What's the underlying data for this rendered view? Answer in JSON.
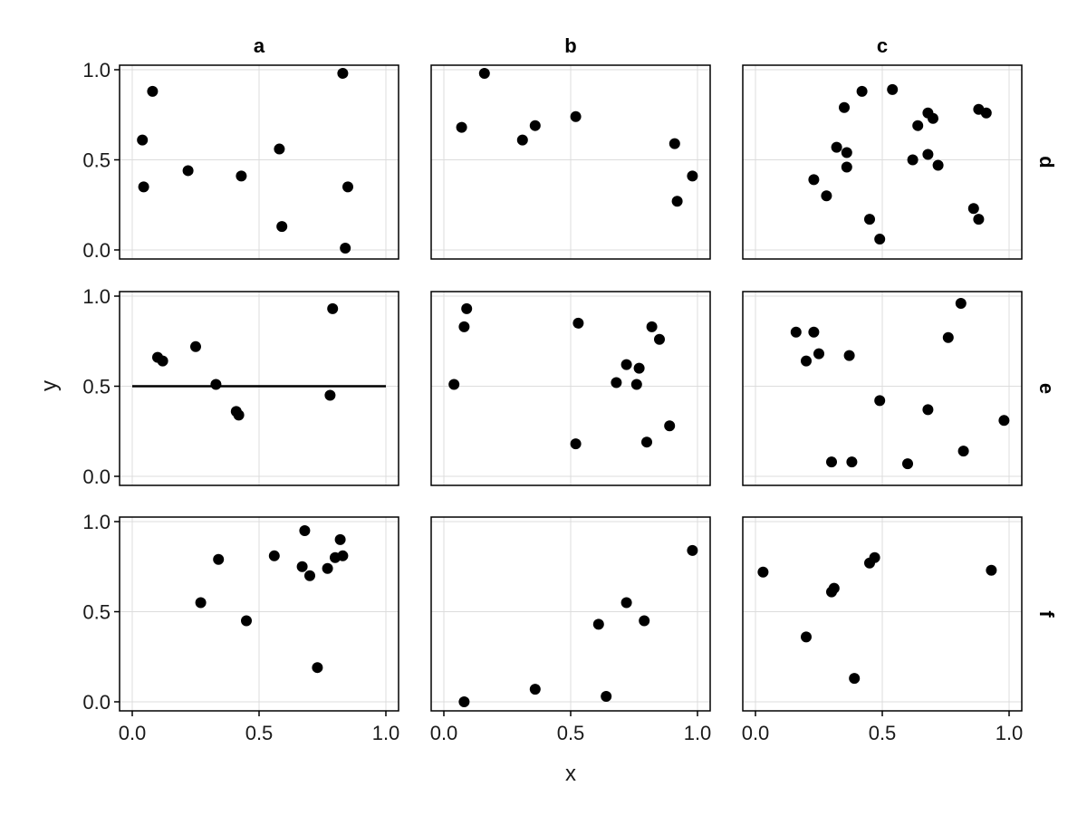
{
  "chart_data": {
    "type": "scatter",
    "xlabel": "x",
    "ylabel": "y",
    "xlim": [
      0,
      1
    ],
    "ylim": [
      0,
      1
    ],
    "x_ticks": [
      "0.0",
      "0.5",
      "1.0"
    ],
    "y_ticks": [
      "0.0",
      "0.5",
      "1.0"
    ],
    "grid": true,
    "col_labels": [
      "a",
      "b",
      "c"
    ],
    "row_labels": [
      "d",
      "e",
      "f"
    ],
    "marker_color": "#000000",
    "panels": [
      {
        "row": "d",
        "col": "a",
        "points": [
          [
            0.04,
            0.61
          ],
          [
            0.045,
            0.35
          ],
          [
            0.08,
            0.88
          ],
          [
            0.22,
            0.44
          ],
          [
            0.43,
            0.41
          ],
          [
            0.58,
            0.56
          ],
          [
            0.59,
            0.13
          ],
          [
            0.83,
            0.98
          ],
          [
            0.84,
            0.01
          ],
          [
            0.85,
            0.35
          ]
        ]
      },
      {
        "row": "d",
        "col": "b",
        "points": [
          [
            0.07,
            0.68
          ],
          [
            0.16,
            0.98
          ],
          [
            0.31,
            0.61
          ],
          [
            0.36,
            0.69
          ],
          [
            0.52,
            0.74
          ],
          [
            0.91,
            0.59
          ],
          [
            0.92,
            0.27
          ],
          [
            0.98,
            0.41
          ]
        ]
      },
      {
        "row": "d",
        "col": "c",
        "points": [
          [
            0.23,
            0.39
          ],
          [
            0.28,
            0.3
          ],
          [
            0.32,
            0.57
          ],
          [
            0.35,
            0.79
          ],
          [
            0.36,
            0.54
          ],
          [
            0.36,
            0.46
          ],
          [
            0.42,
            0.88
          ],
          [
            0.45,
            0.17
          ],
          [
            0.49,
            0.06
          ],
          [
            0.54,
            0.89
          ],
          [
            0.62,
            0.5
          ],
          [
            0.64,
            0.69
          ],
          [
            0.68,
            0.76
          ],
          [
            0.68,
            0.53
          ],
          [
            0.7,
            0.73
          ],
          [
            0.72,
            0.47
          ],
          [
            0.86,
            0.23
          ],
          [
            0.88,
            0.78
          ],
          [
            0.88,
            0.17
          ],
          [
            0.91,
            0.76
          ]
        ]
      },
      {
        "row": "e",
        "col": "a",
        "points": [
          [
            0.1,
            0.66
          ],
          [
            0.12,
            0.64
          ],
          [
            0.25,
            0.72
          ],
          [
            0.33,
            0.51
          ],
          [
            0.41,
            0.36
          ],
          [
            0.42,
            0.34
          ],
          [
            0.78,
            0.45
          ],
          [
            0.79,
            0.93
          ]
        ],
        "hline": 0.5
      },
      {
        "row": "e",
        "col": "b",
        "points": [
          [
            0.04,
            0.51
          ],
          [
            0.08,
            0.83
          ],
          [
            0.09,
            0.93
          ],
          [
            0.52,
            0.18
          ],
          [
            0.53,
            0.85
          ],
          [
            0.68,
            0.52
          ],
          [
            0.72,
            0.62
          ],
          [
            0.76,
            0.51
          ],
          [
            0.77,
            0.6
          ],
          [
            0.8,
            0.19
          ],
          [
            0.82,
            0.83
          ],
          [
            0.85,
            0.76
          ],
          [
            0.89,
            0.28
          ]
        ]
      },
      {
        "row": "e",
        "col": "c",
        "points": [
          [
            0.16,
            0.8
          ],
          [
            0.2,
            0.64
          ],
          [
            0.23,
            0.8
          ],
          [
            0.25,
            0.68
          ],
          [
            0.3,
            0.08
          ],
          [
            0.37,
            0.67
          ],
          [
            0.38,
            0.08
          ],
          [
            0.49,
            0.42
          ],
          [
            0.6,
            0.07
          ],
          [
            0.68,
            0.37
          ],
          [
            0.76,
            0.77
          ],
          [
            0.81,
            0.96
          ],
          [
            0.82,
            0.14
          ],
          [
            0.98,
            0.31
          ]
        ]
      },
      {
        "row": "f",
        "col": "a",
        "points": [
          [
            0.27,
            0.55
          ],
          [
            0.34,
            0.79
          ],
          [
            0.45,
            0.45
          ],
          [
            0.56,
            0.81
          ],
          [
            0.67,
            0.75
          ],
          [
            0.68,
            0.95
          ],
          [
            0.7,
            0.7
          ],
          [
            0.73,
            0.19
          ],
          [
            0.77,
            0.74
          ],
          [
            0.8,
            0.8
          ],
          [
            0.82,
            0.9
          ],
          [
            0.83,
            0.81
          ]
        ]
      },
      {
        "row": "f",
        "col": "b",
        "points": [
          [
            0.08,
            0.0
          ],
          [
            0.36,
            0.07
          ],
          [
            0.61,
            0.43
          ],
          [
            0.64,
            0.03
          ],
          [
            0.72,
            0.55
          ],
          [
            0.79,
            0.45
          ],
          [
            0.98,
            0.84
          ]
        ]
      },
      {
        "row": "f",
        "col": "c",
        "points": [
          [
            0.03,
            0.72
          ],
          [
            0.2,
            0.36
          ],
          [
            0.3,
            0.61
          ],
          [
            0.31,
            0.63
          ],
          [
            0.39,
            0.13
          ],
          [
            0.45,
            0.77
          ],
          [
            0.47,
            0.8
          ],
          [
            0.93,
            0.73
          ]
        ]
      }
    ]
  }
}
